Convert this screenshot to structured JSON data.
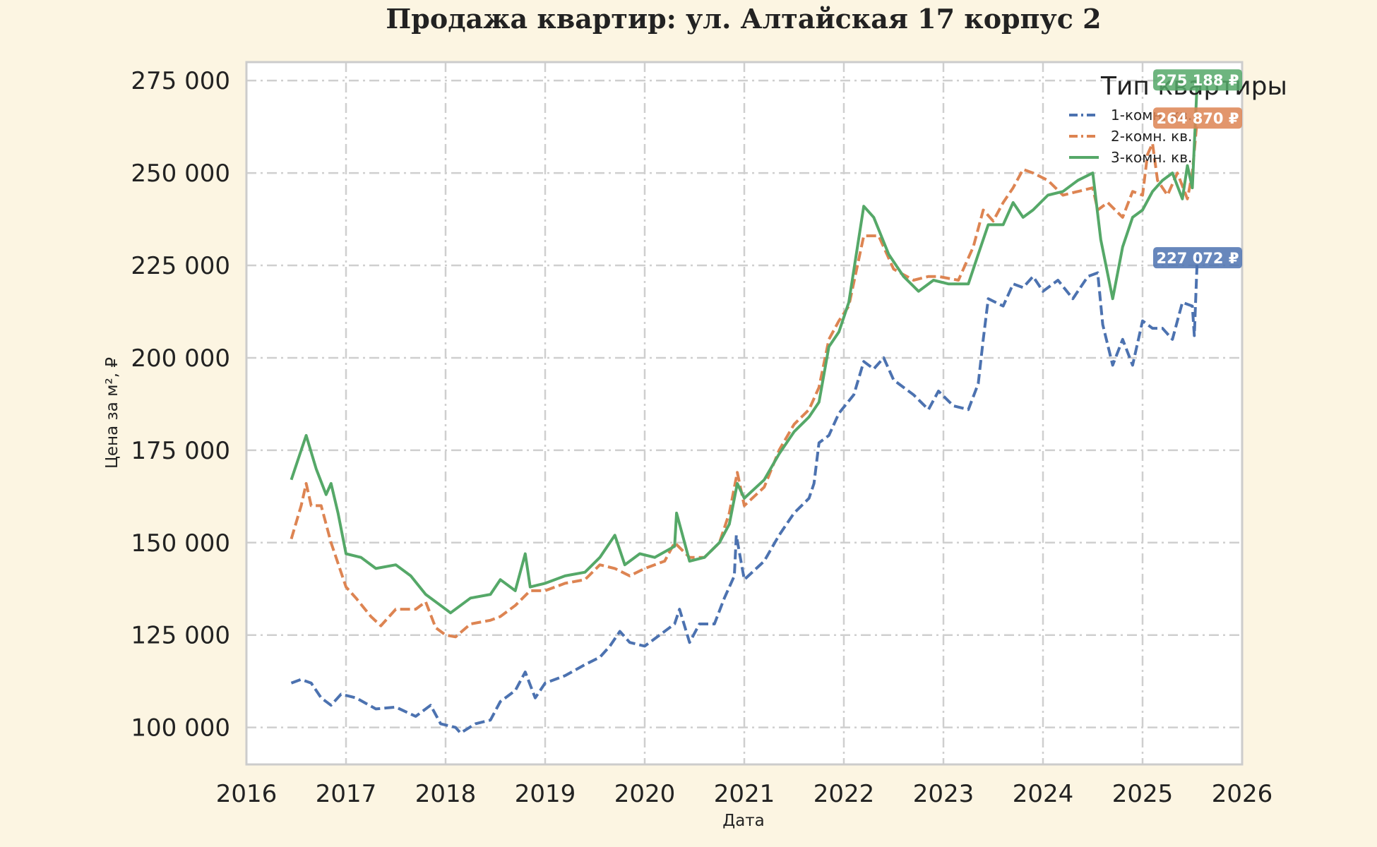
{
  "chart_data": {
    "type": "line",
    "title": "Продажа квартир: ул. Алтайская 17 корпус 2",
    "xlabel": "Дата",
    "ylabel": "Цена за м², ₽",
    "xlim": [
      2016,
      2026
    ],
    "ylim": [
      90000,
      280000
    ],
    "x_ticks": [
      "2016",
      "2017",
      "2018",
      "2019",
      "2020",
      "2021",
      "2022",
      "2023",
      "2024",
      "2025",
      "2026"
    ],
    "y_ticks": [
      {
        "value": 100000,
        "label": "100 000"
      },
      {
        "value": 125000,
        "label": "125 000"
      },
      {
        "value": 150000,
        "label": "150 000"
      },
      {
        "value": 175000,
        "label": "175 000"
      },
      {
        "value": 200000,
        "label": "200 000"
      },
      {
        "value": 225000,
        "label": "225 000"
      },
      {
        "value": 250000,
        "label": "250 000"
      },
      {
        "value": 275000,
        "label": "275 000"
      }
    ],
    "grid": true,
    "legend": {
      "title": "Тип квартиры",
      "position": "top-right"
    },
    "series": [
      {
        "name": "1-комн. кв.",
        "color": "#4c72b0",
        "line_style": "dashed",
        "end_label": "227 072 ₽",
        "end_value": 227072,
        "points": [
          [
            2016.45,
            112000
          ],
          [
            2016.55,
            113000
          ],
          [
            2016.65,
            112000
          ],
          [
            2016.75,
            108000
          ],
          [
            2016.85,
            106000
          ],
          [
            2016.95,
            109000
          ],
          [
            2017.1,
            108000
          ],
          [
            2017.3,
            105000
          ],
          [
            2017.5,
            105500
          ],
          [
            2017.7,
            103000
          ],
          [
            2017.85,
            106000
          ],
          [
            2017.95,
            101000
          ],
          [
            2018.1,
            100000
          ],
          [
            2018.15,
            98500
          ],
          [
            2018.3,
            101000
          ],
          [
            2018.45,
            102000
          ],
          [
            2018.55,
            107000
          ],
          [
            2018.7,
            110000
          ],
          [
            2018.8,
            115000
          ],
          [
            2018.9,
            108000
          ],
          [
            2019.0,
            112000
          ],
          [
            2019.2,
            114000
          ],
          [
            2019.4,
            117000
          ],
          [
            2019.55,
            119000
          ],
          [
            2019.65,
            122000
          ],
          [
            2019.75,
            126000
          ],
          [
            2019.85,
            123000
          ],
          [
            2020.0,
            122000
          ],
          [
            2020.15,
            125000
          ],
          [
            2020.3,
            128000
          ],
          [
            2020.35,
            132000
          ],
          [
            2020.45,
            123000
          ],
          [
            2020.55,
            128000
          ],
          [
            2020.7,
            128000
          ],
          [
            2020.8,
            135000
          ],
          [
            2020.9,
            141000
          ],
          [
            2020.92,
            152000
          ],
          [
            2021.0,
            140000
          ],
          [
            2021.2,
            145000
          ],
          [
            2021.35,
            152000
          ],
          [
            2021.5,
            158000
          ],
          [
            2021.65,
            162000
          ],
          [
            2021.7,
            166000
          ],
          [
            2021.75,
            177000
          ],
          [
            2021.85,
            179000
          ],
          [
            2021.95,
            185000
          ],
          [
            2022.1,
            190000
          ],
          [
            2022.2,
            199000
          ],
          [
            2022.3,
            197000
          ],
          [
            2022.4,
            200000
          ],
          [
            2022.5,
            194000
          ],
          [
            2022.7,
            190000
          ],
          [
            2022.85,
            186000
          ],
          [
            2022.95,
            191000
          ],
          [
            2023.1,
            187000
          ],
          [
            2023.25,
            186000
          ],
          [
            2023.35,
            193000
          ],
          [
            2023.4,
            205000
          ],
          [
            2023.45,
            216000
          ],
          [
            2023.6,
            214000
          ],
          [
            2023.7,
            220000
          ],
          [
            2023.8,
            219000
          ],
          [
            2023.9,
            222000
          ],
          [
            2024.0,
            218000
          ],
          [
            2024.15,
            221000
          ],
          [
            2024.3,
            216000
          ],
          [
            2024.45,
            222000
          ],
          [
            2024.55,
            223000
          ],
          [
            2024.6,
            209000
          ],
          [
            2024.7,
            198000
          ],
          [
            2024.8,
            205000
          ],
          [
            2024.9,
            198000
          ],
          [
            2025.0,
            210000
          ],
          [
            2025.1,
            208000
          ],
          [
            2025.2,
            208000
          ],
          [
            2025.3,
            205000
          ],
          [
            2025.4,
            215000
          ],
          [
            2025.5,
            214000
          ],
          [
            2025.52,
            206000
          ],
          [
            2025.55,
            227072
          ]
        ]
      },
      {
        "name": "2-комн. кв.",
        "color": "#dd8452",
        "line_style": "dashed",
        "end_label": "264 870 ₽",
        "end_value": 264870,
        "points": [
          [
            2016.45,
            151000
          ],
          [
            2016.55,
            160000
          ],
          [
            2016.6,
            166000
          ],
          [
            2016.65,
            160000
          ],
          [
            2016.75,
            160000
          ],
          [
            2016.85,
            150000
          ],
          [
            2017.0,
            138000
          ],
          [
            2017.1,
            135000
          ],
          [
            2017.25,
            130000
          ],
          [
            2017.35,
            127500
          ],
          [
            2017.5,
            132000
          ],
          [
            2017.7,
            132000
          ],
          [
            2017.8,
            134000
          ],
          [
            2017.9,
            127000
          ],
          [
            2018.0,
            125000
          ],
          [
            2018.1,
            124500
          ],
          [
            2018.25,
            128000
          ],
          [
            2018.45,
            129000
          ],
          [
            2018.55,
            130000
          ],
          [
            2018.7,
            133000
          ],
          [
            2018.85,
            137000
          ],
          [
            2019.0,
            137000
          ],
          [
            2019.2,
            139000
          ],
          [
            2019.4,
            140000
          ],
          [
            2019.55,
            144000
          ],
          [
            2019.7,
            143000
          ],
          [
            2019.85,
            141000
          ],
          [
            2020.0,
            143000
          ],
          [
            2020.2,
            145000
          ],
          [
            2020.3,
            150000
          ],
          [
            2020.45,
            146000
          ],
          [
            2020.6,
            146000
          ],
          [
            2020.75,
            150000
          ],
          [
            2020.85,
            158000
          ],
          [
            2020.93,
            169000
          ],
          [
            2021.0,
            160000
          ],
          [
            2021.2,
            165000
          ],
          [
            2021.35,
            175000
          ],
          [
            2021.5,
            182000
          ],
          [
            2021.65,
            186000
          ],
          [
            2021.75,
            192000
          ],
          [
            2021.85,
            205000
          ],
          [
            2021.95,
            210000
          ],
          [
            2022.05,
            214000
          ],
          [
            2022.2,
            233000
          ],
          [
            2022.35,
            233000
          ],
          [
            2022.5,
            224000
          ],
          [
            2022.7,
            221000
          ],
          [
            2022.85,
            222000
          ],
          [
            2022.95,
            222000
          ],
          [
            2023.15,
            221000
          ],
          [
            2023.3,
            230000
          ],
          [
            2023.4,
            240000
          ],
          [
            2023.5,
            237000
          ],
          [
            2023.6,
            242000
          ],
          [
            2023.7,
            246000
          ],
          [
            2023.8,
            251000
          ],
          [
            2023.9,
            250000
          ],
          [
            2024.05,
            248000
          ],
          [
            2024.2,
            244000
          ],
          [
            2024.35,
            245000
          ],
          [
            2024.5,
            246000
          ],
          [
            2024.55,
            240000
          ],
          [
            2024.65,
            242000
          ],
          [
            2024.8,
            238000
          ],
          [
            2024.9,
            245000
          ],
          [
            2025.0,
            244000
          ],
          [
            2025.05,
            255000
          ],
          [
            2025.1,
            258000
          ],
          [
            2025.15,
            248000
          ],
          [
            2025.25,
            244000
          ],
          [
            2025.35,
            250000
          ],
          [
            2025.45,
            243000
          ],
          [
            2025.5,
            250000
          ],
          [
            2025.55,
            264870
          ]
        ]
      },
      {
        "name": "3-комн. кв.",
        "color": "#55a868",
        "line_style": "solid",
        "end_label": "275 188 ₽",
        "end_value": 275188,
        "points": [
          [
            2016.45,
            167000
          ],
          [
            2016.55,
            175000
          ],
          [
            2016.6,
            179000
          ],
          [
            2016.7,
            170000
          ],
          [
            2016.8,
            163000
          ],
          [
            2016.85,
            166000
          ],
          [
            2016.92,
            158000
          ],
          [
            2017.0,
            147000
          ],
          [
            2017.15,
            146000
          ],
          [
            2017.3,
            143000
          ],
          [
            2017.5,
            144000
          ],
          [
            2017.65,
            141000
          ],
          [
            2017.8,
            136000
          ],
          [
            2017.95,
            133000
          ],
          [
            2018.05,
            131000
          ],
          [
            2018.25,
            135000
          ],
          [
            2018.45,
            136000
          ],
          [
            2018.55,
            140000
          ],
          [
            2018.7,
            137000
          ],
          [
            2018.8,
            147000
          ],
          [
            2018.85,
            138000
          ],
          [
            2019.0,
            139000
          ],
          [
            2019.2,
            141000
          ],
          [
            2019.4,
            142000
          ],
          [
            2019.55,
            146000
          ],
          [
            2019.7,
            152000
          ],
          [
            2019.8,
            144000
          ],
          [
            2019.95,
            147000
          ],
          [
            2020.1,
            146000
          ],
          [
            2020.3,
            149000
          ],
          [
            2020.32,
            158000
          ],
          [
            2020.45,
            145000
          ],
          [
            2020.6,
            146000
          ],
          [
            2020.75,
            150000
          ],
          [
            2020.85,
            155000
          ],
          [
            2020.93,
            166000
          ],
          [
            2021.0,
            162000
          ],
          [
            2021.2,
            167000
          ],
          [
            2021.35,
            174000
          ],
          [
            2021.5,
            180000
          ],
          [
            2021.65,
            184000
          ],
          [
            2021.75,
            188000
          ],
          [
            2021.85,
            203000
          ],
          [
            2021.95,
            207000
          ],
          [
            2022.05,
            215000
          ],
          [
            2022.2,
            241000
          ],
          [
            2022.3,
            238000
          ],
          [
            2022.45,
            228000
          ],
          [
            2022.6,
            222000
          ],
          [
            2022.75,
            218000
          ],
          [
            2022.9,
            221000
          ],
          [
            2023.05,
            220000
          ],
          [
            2023.25,
            220000
          ],
          [
            2023.35,
            228000
          ],
          [
            2023.45,
            236000
          ],
          [
            2023.6,
            236000
          ],
          [
            2023.7,
            242000
          ],
          [
            2023.8,
            238000
          ],
          [
            2023.9,
            240000
          ],
          [
            2024.05,
            244000
          ],
          [
            2024.2,
            245000
          ],
          [
            2024.35,
            248000
          ],
          [
            2024.5,
            250000
          ],
          [
            2024.58,
            232000
          ],
          [
            2024.7,
            216000
          ],
          [
            2024.8,
            230000
          ],
          [
            2024.9,
            238000
          ],
          [
            2025.0,
            240000
          ],
          [
            2025.1,
            245000
          ],
          [
            2025.2,
            248000
          ],
          [
            2025.3,
            250000
          ],
          [
            2025.4,
            243000
          ],
          [
            2025.45,
            252000
          ],
          [
            2025.5,
            246000
          ],
          [
            2025.55,
            275188
          ]
        ]
      }
    ]
  }
}
